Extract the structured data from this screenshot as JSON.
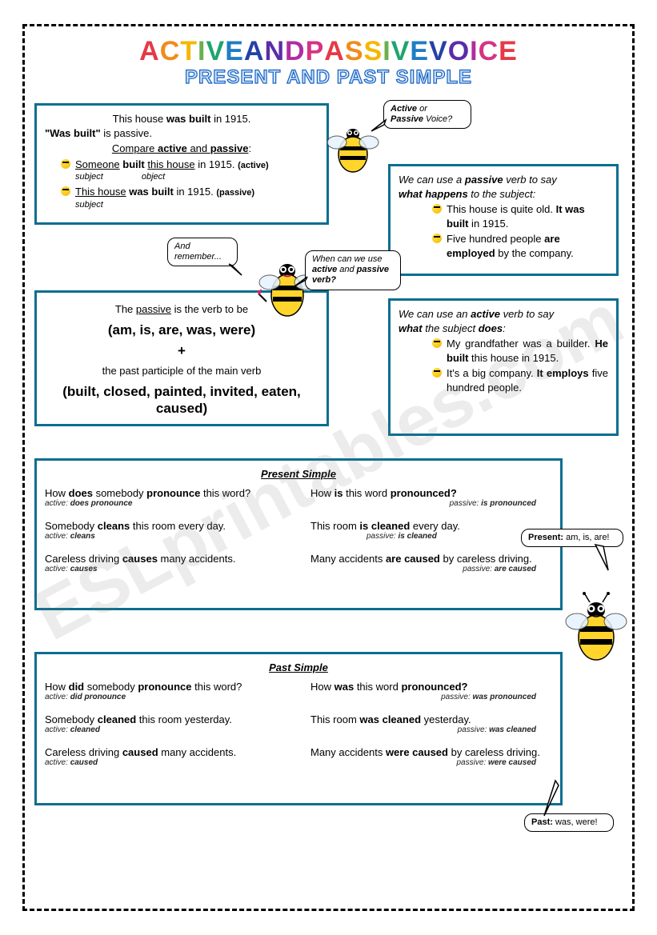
{
  "title_main": "ACTIVE AND PASSIVE VOICE",
  "title_colors": [
    "#e63946",
    "#f08c1b",
    "#f5b700",
    "#6ab04c",
    "#1fa56d",
    "#1f7dc4",
    "#2540a8",
    "#5a2da8",
    "#b02da0",
    "#d63384",
    "#e63946",
    "#f08c1b",
    "#f5b700",
    "#6ab04c",
    "#1fa56d",
    "#1f7dc4",
    "#2540a8",
    "#5a2da8",
    "#b02da0",
    "#d63384",
    "#e63946",
    "#f08c1b",
    "#f5b700",
    "#6ab04c",
    "#1fa56d"
  ],
  "subtitle": "PRESENT AND PAST SIMPLE",
  "box1": {
    "line1a": "This house ",
    "line1b": "was built",
    "line1c": " in 1915.",
    "line2a": "\"Was built\"",
    "line2b": " is passive.",
    "compare": "Compare ",
    "compare_a": "active",
    "compare_and": " and ",
    "compare_p": "passive",
    "compare_end": ":",
    "ex1_a": "Someone",
    "ex1_b": " built ",
    "ex1_c": "this house",
    "ex1_d": " in 1915. ",
    "ex1_tag": "(active)",
    "ex1_sub": "subject",
    "ex1_obj": "object",
    "ex2_a": "This house",
    "ex2_b": " was built",
    "ex2_c": " in 1915. ",
    "ex2_tag": "(passive)",
    "ex2_sub": "subject"
  },
  "bubble1a": "Active",
  "bubble1b": " or",
  "bubble1c": "Passive",
  "bubble1d": " Voice?",
  "bubble2": "And\nremember...",
  "bubble3a": "When can we use",
  "bubble3b": "active",
  "bubble3c": " and ",
  "bubble3d": "passive",
  "bubble3e": "verb?",
  "box2": {
    "l1": "We can use a ",
    "l1b": "passive",
    "l1c": " verb to say",
    "l2": "what happens",
    "l2b": " to the subject:",
    "b1_a": "This house is quite old.",
    "b1_b": "It was built",
    "b1_c": " in 1915.",
    "b2_a": "Five hundred people ",
    "b2_b": "are employed",
    "b2_c": " by the company."
  },
  "box3": {
    "l1a": "The ",
    "l1b": "passive",
    "l1c": " is the verb to be",
    "l2": "(am, is, are, was, were)",
    "plus": "+",
    "l3": "the past participle of the main verb",
    "l4": "(built, closed, painted, invited, eaten, caused)"
  },
  "box4": {
    "l1": "We can use an ",
    "l1b": "active",
    "l1c": " verb to say",
    "l2": "what",
    "l2b": " the subject ",
    "l2c": "does",
    "l2d": ":",
    "b1_a": "My grandfather was a builder. ",
    "b1_b": "He built",
    "b1_c": " this house in 1915.",
    "b2_a": "It's a big company. ",
    "b2_b": "It employs",
    "b2_c": " five hundred people."
  },
  "present": {
    "heading": "Present Simple",
    "r1_l": "How does somebody pronounce this word?",
    "r1_l_sub": "active: does pronounce",
    "r1_r": "How is this word pronounced?",
    "r1_r_sub": "passive: is pronounced",
    "r2_l": "Somebody cleans this room every day.",
    "r2_l_sub": "active: cleans",
    "r2_r": "This room is cleaned every day.",
    "r2_r_sub": "passive: is cleaned",
    "r3_l": "Careless driving causes many accidents.",
    "r3_l_sub": "active: causes",
    "r3_r": "Many accidents are caused by careless driving.",
    "r3_r_sub": "passive: are caused"
  },
  "past": {
    "heading": "Past Simple",
    "r1_l": "How did somebody pronounce this word?",
    "r1_l_sub": "active: did pronounce",
    "r1_r": "How was this word pronounced?",
    "r1_r_sub": "passive: was pronounced",
    "r2_l": "Somebody cleaned this room yesterday.",
    "r2_l_sub": "active: cleaned",
    "r2_r": "This room was cleaned yesterday.",
    "r2_r_sub": "passive: was cleaned",
    "r3_l": "Careless driving caused many accidents.",
    "r3_l_sub": "active: caused",
    "r3_r": "Many accidents were caused by careless driving.",
    "r3_r_sub": "passive: were caused"
  },
  "bubble_present": "Present: am, is, are!",
  "bubble_past": "Past: was, were!",
  "watermark": "ESLprintables.com"
}
